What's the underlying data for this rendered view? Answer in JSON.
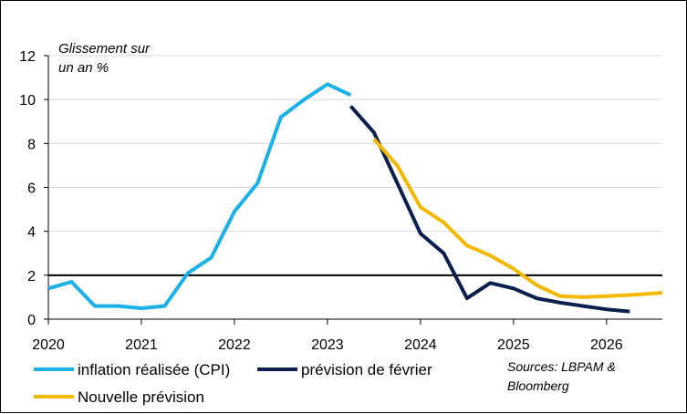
{
  "chart_data": {
    "type": "line",
    "ylabel_line1": "Glissement sur",
    "ylabel_line2": "un an %",
    "xlim": [
      2020,
      2026.6
    ],
    "ylim": [
      0,
      12
    ],
    "yticks": [
      0,
      2,
      4,
      6,
      8,
      10,
      12
    ],
    "xticks": [
      2020,
      2021,
      2022,
      2023,
      2024,
      2025,
      2026
    ],
    "xtick_labels": [
      "2020",
      "2021",
      "2022",
      "2023",
      "2024",
      "2025",
      "2026"
    ],
    "ytick_labels": [
      "0",
      "2",
      "4",
      "6",
      "8",
      "10",
      "12"
    ],
    "grid": "horizontal",
    "reference_line": 2,
    "series": [
      {
        "name": "inflation réalisée (CPI)",
        "color": "#1ab0e8",
        "x": [
          2020,
          2020.25,
          2020.5,
          2020.75,
          2021,
          2021.25,
          2021.5,
          2021.75,
          2022,
          2022.25,
          2022.5,
          2022.75,
          2023,
          2023.25
        ],
        "y": [
          1.4,
          1.7,
          0.6,
          0.6,
          0.5,
          0.6,
          2.1,
          2.8,
          4.9,
          6.2,
          9.2,
          10.0,
          10.7,
          10.2
        ]
      },
      {
        "name": "prévision de février",
        "color": "#0b1f4f",
        "x": [
          2023.25,
          2023.5,
          2023.75,
          2024,
          2024.25,
          2024.5,
          2024.75,
          2025,
          2025.25,
          2025.5,
          2025.75,
          2026,
          2026.25
        ],
        "y": [
          9.7,
          8.5,
          6.2,
          3.9,
          3.0,
          0.95,
          1.65,
          1.4,
          0.95,
          0.75,
          0.6,
          0.45,
          0.35
        ]
      },
      {
        "name": "Nouvelle prévision",
        "color": "#f5b800",
        "x": [
          2023.5,
          2023.75,
          2024,
          2024.25,
          2024.5,
          2024.75,
          2025,
          2025.25,
          2025.5,
          2025.75,
          2026,
          2026.25,
          2026.6
        ],
        "y": [
          8.2,
          7.0,
          5.1,
          4.4,
          3.35,
          2.9,
          2.3,
          1.55,
          1.05,
          1.0,
          1.05,
          1.1,
          1.2
        ]
      }
    ],
    "legend": "bottom",
    "source_line1": "Sources: LBPAM &",
    "source_line2": "Bloomberg"
  }
}
